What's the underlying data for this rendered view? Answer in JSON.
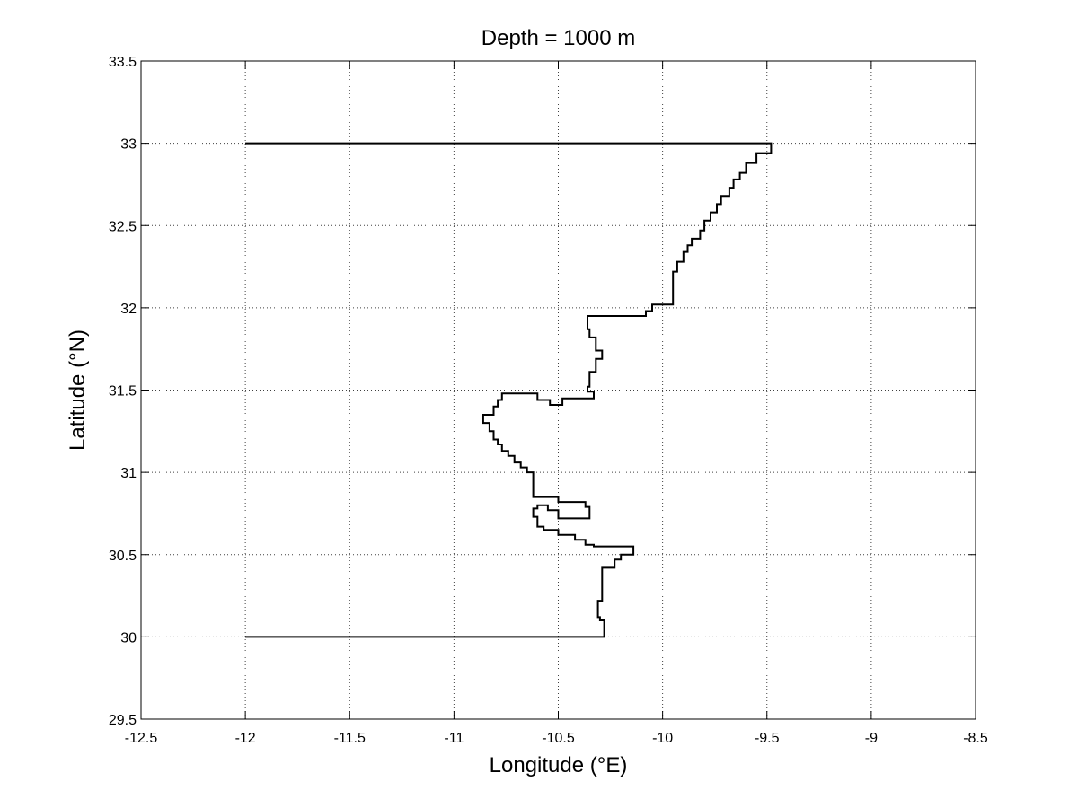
{
  "chart_data": {
    "type": "line",
    "title": "Depth = 1000 m",
    "xlabel": "Longitude (°E)",
    "ylabel": "Latitude (°N)",
    "xlim": [
      -12.5,
      -8.5
    ],
    "ylim": [
      29.5,
      33.5
    ],
    "xticks": [
      -12.5,
      -12,
      -11.5,
      -11,
      -10.5,
      -10,
      -9.5,
      -9,
      -8.5
    ],
    "yticks": [
      29.5,
      30,
      30.5,
      31,
      31.5,
      32,
      32.5,
      33,
      33.5
    ],
    "xtick_labels": [
      "-12.5",
      "-12",
      "-11.5",
      "-11",
      "-10.5",
      "-10",
      "-9.5",
      "-9",
      "-8.5"
    ],
    "ytick_labels": [
      "29.5",
      "30",
      "30.5",
      "31",
      "31.5",
      "32",
      "32.5",
      "33",
      "33.5"
    ],
    "grid": true,
    "line_color": "#000000",
    "series": [
      {
        "x": [
          -12,
          -9.48,
          -9.48,
          -9.55,
          -9.55,
          -9.6,
          -9.6,
          -9.63,
          -9.63,
          -9.66,
          -9.66,
          -9.68,
          -9.68,
          -9.72,
          -9.72,
          -9.74,
          -9.74,
          -9.77,
          -9.77,
          -9.8,
          -9.8,
          -9.82,
          -9.82,
          -9.86,
          -9.86,
          -9.88,
          -9.88,
          -9.9,
          -9.9,
          -9.93,
          -9.93,
          -9.95,
          -9.95,
          -10.05,
          -10.05,
          -10.08,
          -10.08,
          -10.36,
          -10.36,
          -10.35,
          -10.35,
          -10.32,
          -10.32,
          -10.29,
          -10.29,
          -10.32,
          -10.32,
          -10.35,
          -10.35,
          -10.36,
          -10.36,
          -10.33,
          -10.33,
          -10.48,
          -10.48,
          -10.54,
          -10.54,
          -10.6,
          -10.6,
          -10.77,
          -10.77,
          -10.79,
          -10.79,
          -10.81,
          -10.81,
          -10.86,
          -10.86,
          -10.83,
          -10.83,
          -10.81,
          -10.81,
          -10.79,
          -10.79,
          -10.77,
          -10.77,
          -10.74,
          -10.74,
          -10.71,
          -10.71,
          -10.68,
          -10.68,
          -10.65,
          -10.65,
          -10.62,
          -10.62,
          -10.5,
          -10.5,
          -10.37,
          -10.37,
          -10.35,
          -10.35,
          -10.5,
          -10.5,
          -10.55,
          -10.55,
          -10.6,
          -10.6,
          -10.62,
          -10.62,
          -10.6,
          -10.6,
          -10.57,
          -10.57,
          -10.5,
          -10.5,
          -10.42,
          -10.42,
          -10.37,
          -10.37,
          -10.33,
          -10.33,
          -10.14,
          -10.14,
          -10.2,
          -10.2,
          -10.23,
          -10.23,
          -10.29,
          -10.29,
          -10.31,
          -10.31,
          -10.3,
          -10.3,
          -10.28,
          -10.28,
          -12,
          -12
        ],
        "y": [
          33,
          33,
          32.94,
          32.94,
          32.88,
          32.88,
          32.82,
          32.82,
          32.78,
          32.78,
          32.73,
          32.73,
          32.68,
          32.68,
          32.63,
          32.63,
          32.58,
          32.58,
          32.53,
          32.53,
          32.47,
          32.47,
          32.42,
          32.42,
          32.38,
          32.38,
          32.34,
          32.34,
          32.28,
          32.28,
          32.22,
          32.22,
          32.02,
          32.02,
          31.98,
          31.98,
          31.95,
          31.95,
          31.87,
          31.87,
          31.82,
          31.82,
          31.74,
          31.74,
          31.69,
          31.69,
          31.61,
          31.61,
          31.52,
          31.52,
          31.49,
          31.49,
          31.45,
          31.45,
          31.41,
          31.41,
          31.44,
          31.44,
          31.48,
          31.48,
          31.44,
          31.44,
          31.4,
          31.4,
          31.35,
          31.35,
          31.3,
          31.3,
          31.25,
          31.25,
          31.2,
          31.2,
          31.17,
          31.17,
          31.13,
          31.13,
          31.1,
          31.1,
          31.06,
          31.06,
          31.03,
          31.03,
          31.0,
          31.0,
          30.85,
          30.85,
          30.82,
          30.82,
          30.79,
          30.79,
          30.72,
          30.72,
          30.77,
          30.77,
          30.8,
          30.8,
          30.78,
          30.78,
          30.73,
          30.73,
          30.67,
          30.67,
          30.65,
          30.65,
          30.62,
          30.62,
          30.59,
          30.59,
          30.56,
          30.56,
          30.55,
          30.55,
          30.5,
          30.5,
          30.47,
          30.47,
          30.42,
          30.42,
          30.22,
          30.22,
          30.12,
          30.12,
          30.1,
          30.1,
          30.0,
          30.0,
          30
        ]
      }
    ]
  }
}
